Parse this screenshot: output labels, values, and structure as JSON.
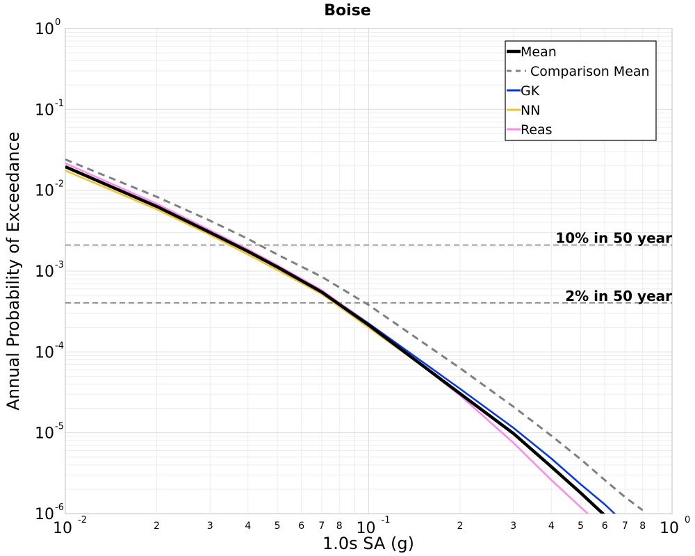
{
  "chart_data": {
    "type": "line",
    "title": "Boise",
    "xlabel": "1.0s SA (g)",
    "ylabel": "Annual Probability of Exceedance",
    "xscale": "log",
    "yscale": "log",
    "xlim": [
      0.01,
      1
    ],
    "ylim": [
      1e-06,
      1
    ],
    "grid": true,
    "legend_position": "top-right",
    "x_major_ticks": [
      {
        "base": "10",
        "exp": "-2"
      },
      {
        "base": "10",
        "exp": "-1"
      },
      {
        "base": "10",
        "exp": "0"
      }
    ],
    "x_minor_tick_labels": [
      "2",
      "3",
      "4",
      "5",
      "6",
      "7",
      "8"
    ],
    "y_major_ticks": [
      {
        "base": "10",
        "exp": "0"
      },
      {
        "base": "10",
        "exp": "-1"
      },
      {
        "base": "10",
        "exp": "-2"
      },
      {
        "base": "10",
        "exp": "-3"
      },
      {
        "base": "10",
        "exp": "-4"
      },
      {
        "base": "10",
        "exp": "-5"
      },
      {
        "base": "10",
        "exp": "-6"
      }
    ],
    "reference_lines": [
      {
        "label": "10% in 50 year",
        "y": 0.0021,
        "color": "#808080",
        "dash": "dashed"
      },
      {
        "label": "2% in 50 year",
        "y": 0.000404,
        "color": "#808080",
        "dash": "dashed"
      }
    ],
    "series": [
      {
        "name": "Mean",
        "color": "#000000",
        "dash": "solid",
        "width": 4.5,
        "x": [
          0.01,
          0.02,
          0.03,
          0.04,
          0.05,
          0.07,
          0.1,
          0.2,
          0.3,
          0.4,
          0.5,
          0.6
        ],
        "y": [
          0.0195,
          0.0063,
          0.003,
          0.00175,
          0.00112,
          0.00055,
          0.000215,
          3.05e-05,
          9.8e-06,
          3.8e-06,
          1.8e-06,
          9.5e-07
        ]
      },
      {
        "name": "Comparison Mean",
        "color": "#808080",
        "dash": "dashed",
        "width": 3,
        "x": [
          0.01,
          0.02,
          0.03,
          0.04,
          0.05,
          0.07,
          0.1,
          0.2,
          0.3,
          0.4,
          0.5,
          0.6,
          0.7,
          0.8
        ],
        "y": [
          0.024,
          0.0083,
          0.0042,
          0.0025,
          0.0016,
          0.00085,
          0.00038,
          6.3e-05,
          2.1e-05,
          9.2e-06,
          4.7e-06,
          2.6e-06,
          1.6e-06,
          1.1e-06
        ]
      },
      {
        "name": "GK",
        "color": "#0033ff",
        "dash": "solid",
        "width": 2.5,
        "x": [
          0.01,
          0.02,
          0.03,
          0.04,
          0.05,
          0.07,
          0.1,
          0.2,
          0.3,
          0.4,
          0.5,
          0.6,
          0.65
        ],
        "y": [
          0.0195,
          0.0063,
          0.003,
          0.00175,
          0.00113,
          0.00057,
          0.000225,
          3.5e-05,
          1.15e-05,
          4.8e-06,
          2.3e-06,
          1.3e-06,
          9.8e-07
        ]
      },
      {
        "name": "NN",
        "color": "#f2c61f",
        "dash": "solid",
        "width": 2.5,
        "x": [
          0.01,
          0.02,
          0.03,
          0.04,
          0.05,
          0.07,
          0.1,
          0.2
        ],
        "y": [
          0.0175,
          0.0058,
          0.0028,
          0.0016,
          0.00103,
          0.00052,
          0.0002,
          3.1e-05
        ]
      },
      {
        "name": "Reas",
        "color": "#ff88ee",
        "dash": "solid",
        "width": 2.5,
        "x": [
          0.01,
          0.02,
          0.03,
          0.04,
          0.05,
          0.07,
          0.1,
          0.2,
          0.3,
          0.4,
          0.5,
          0.53
        ],
        "y": [
          0.0215,
          0.0068,
          0.0032,
          0.00185,
          0.00118,
          0.00058,
          0.00022,
          2.9e-05,
          7.5e-06,
          2.6e-06,
          1.2e-06,
          9.8e-07
        ]
      }
    ]
  }
}
